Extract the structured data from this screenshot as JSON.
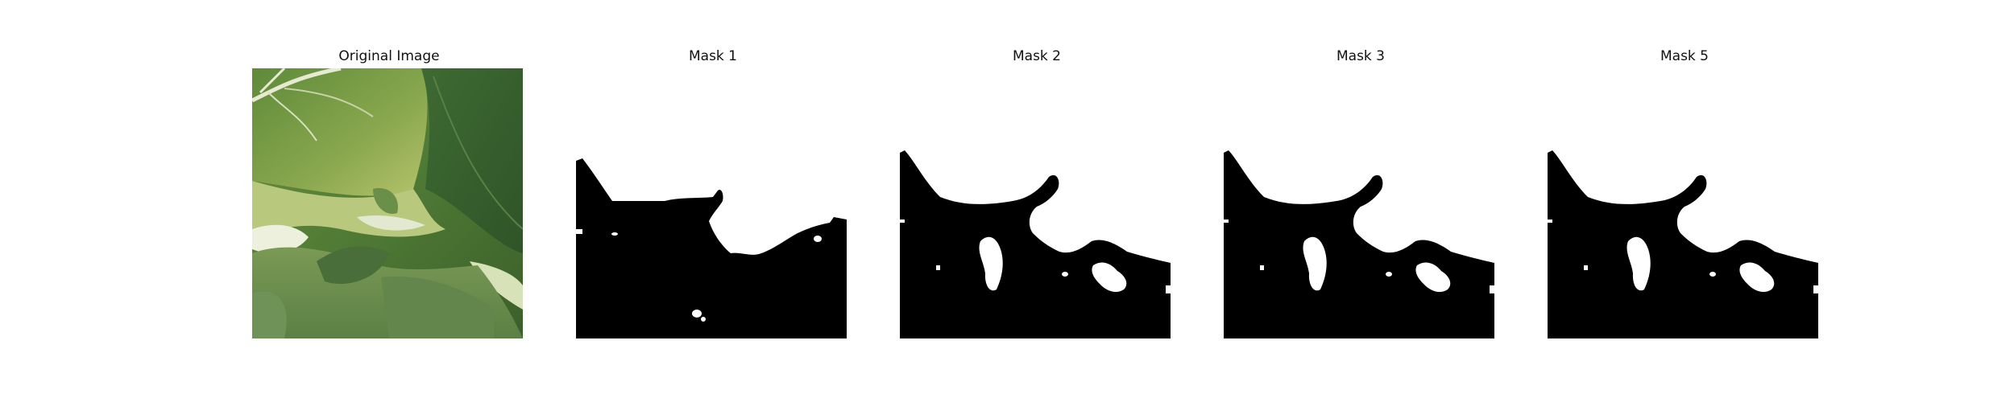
{
  "figure": {
    "panels": [
      {
        "title": "Original Image"
      },
      {
        "title": "Mask 1"
      },
      {
        "title": "Mask 2"
      },
      {
        "title": "Mask 3"
      },
      {
        "title": "Mask 5"
      }
    ]
  },
  "colors": {
    "background": "#ffffff",
    "mask_fill": "#000000",
    "leaf_dark": "#3f6a32",
    "leaf_mid": "#6f9a4c",
    "leaf_light": "#a9c26c",
    "highlight": "#e8ecd8"
  }
}
